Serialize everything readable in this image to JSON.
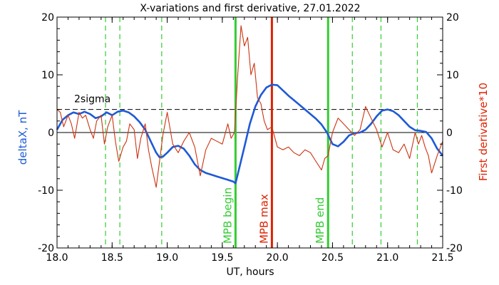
{
  "chart_data": {
    "type": "line",
    "title": "X-variations and first derivative, 27.01.2022",
    "xlabel": "UT, hours",
    "ylabel_left": "deltaX, nT",
    "ylabel_right": "First derivative*10",
    "xlim": [
      18.0,
      21.5
    ],
    "ylim": [
      -20,
      20
    ],
    "ylim_right": [
      -20,
      20
    ],
    "x_ticks": [
      18.0,
      18.5,
      19.0,
      19.5,
      20.0,
      20.5,
      21.0,
      21.5
    ],
    "x_tick_labels": [
      "18.0",
      "18.5",
      "19.0",
      "19.5",
      "20.0",
      "20.5",
      "21.0",
      "21.5"
    ],
    "y_ticks": [
      -20,
      -10,
      0,
      10,
      20
    ],
    "y_tick_labels": [
      "-20",
      "-10",
      "0",
      "10",
      "20"
    ],
    "y_ticks_right": [
      -20,
      -10,
      0,
      10,
      20
    ],
    "y_tick_labels_right": [
      "-20",
      "-10",
      "0",
      "10",
      "20"
    ],
    "colors": {
      "deltaX": "#1e5ad6",
      "derivative": "#cc3311",
      "green_lines": "#33cc33",
      "mpb_max": "#dd2200",
      "axes": "#000000"
    },
    "series": [
      {
        "name": "deltaX, nT",
        "axis": "left",
        "x": [
          18.0,
          18.05,
          18.1,
          18.15,
          18.2,
          18.25,
          18.3,
          18.35,
          18.4,
          18.45,
          18.5,
          18.55,
          18.6,
          18.65,
          18.7,
          18.75,
          18.8,
          18.85,
          18.9,
          18.93,
          18.96,
          19.0,
          19.05,
          19.1,
          19.15,
          19.2,
          19.25,
          19.3,
          19.35,
          19.4,
          19.45,
          19.5,
          19.55,
          19.6,
          19.62,
          19.65,
          19.7,
          19.75,
          19.8,
          19.85,
          19.9,
          19.95,
          20.0,
          20.05,
          20.1,
          20.15,
          20.2,
          20.25,
          20.3,
          20.35,
          20.4,
          20.45,
          20.5,
          20.55,
          20.6,
          20.65,
          20.7,
          20.75,
          20.8,
          20.85,
          20.9,
          20.95,
          21.0,
          21.05,
          21.1,
          21.15,
          21.2,
          21.25,
          21.3,
          21.35,
          21.4,
          21.45,
          21.5
        ],
        "y": [
          0.5,
          2.2,
          3.0,
          3.5,
          3.2,
          3.6,
          3.2,
          2.5,
          2.8,
          3.5,
          3.0,
          3.6,
          3.8,
          3.5,
          2.8,
          1.8,
          0.5,
          -1.5,
          -3.5,
          -4.3,
          -4.2,
          -3.5,
          -2.5,
          -2.3,
          -2.8,
          -4.0,
          -5.5,
          -6.5,
          -7.0,
          -7.3,
          -7.6,
          -7.9,
          -8.2,
          -8.5,
          -8.8,
          -6.5,
          -2.5,
          1.5,
          4.5,
          6.5,
          7.8,
          8.3,
          8.2,
          7.3,
          6.4,
          5.6,
          4.8,
          4.0,
          3.2,
          2.4,
          1.4,
          0.0,
          -2.0,
          -2.4,
          -1.6,
          -0.5,
          -0.1,
          0.0,
          0.5,
          1.5,
          2.8,
          3.8,
          4.0,
          3.7,
          3.0,
          2.0,
          1.0,
          0.4,
          0.3,
          0.1,
          -1.0,
          -2.8,
          -4.0
        ]
      },
      {
        "name": "First derivative*10",
        "axis": "right",
        "x": [
          18.0,
          18.03,
          18.06,
          18.1,
          18.13,
          18.16,
          18.2,
          18.23,
          18.26,
          18.3,
          18.33,
          18.36,
          18.4,
          18.43,
          18.46,
          18.5,
          18.53,
          18.56,
          18.6,
          18.63,
          18.66,
          18.7,
          18.73,
          18.76,
          18.8,
          18.83,
          18.86,
          18.9,
          18.93,
          18.96,
          19.0,
          19.05,
          19.1,
          19.15,
          19.2,
          19.25,
          19.3,
          19.35,
          19.4,
          19.45,
          19.5,
          19.55,
          19.58,
          19.61,
          19.64,
          19.67,
          19.7,
          19.73,
          19.76,
          19.79,
          19.82,
          19.85,
          19.88,
          19.91,
          19.95,
          20.0,
          20.05,
          20.1,
          20.15,
          20.2,
          20.25,
          20.3,
          20.35,
          20.4,
          20.43,
          20.46,
          20.5,
          20.55,
          20.6,
          20.65,
          20.7,
          20.75,
          20.8,
          20.85,
          20.9,
          20.95,
          21.0,
          21.05,
          21.1,
          21.15,
          21.2,
          21.25,
          21.28,
          21.31,
          21.34,
          21.37,
          21.4,
          21.45,
          21.5
        ],
        "y": [
          4.0,
          3.5,
          1.0,
          3.0,
          1.5,
          -1.0,
          3.5,
          2.5,
          3.0,
          0.5,
          -1.0,
          2.0,
          3.0,
          -2.0,
          1.0,
          3.0,
          -1.5,
          -5.0,
          -2.5,
          -1.5,
          1.5,
          0.5,
          -4.5,
          -1.0,
          1.5,
          -3.0,
          -6.0,
          -9.5,
          -5.0,
          -0.5,
          3.5,
          -2.0,
          -3.5,
          -1.5,
          0.0,
          -2.5,
          -7.5,
          -3.0,
          -1.0,
          -1.5,
          -2.0,
          1.5,
          -1.0,
          0.0,
          10.0,
          18.5,
          15.0,
          16.5,
          10.0,
          12.0,
          6.0,
          5.0,
          2.0,
          0.5,
          1.0,
          -2.5,
          -3.0,
          -2.5,
          -3.5,
          -4.0,
          -3.0,
          -3.5,
          -5.0,
          -6.5,
          -4.5,
          -4.0,
          0.0,
          2.5,
          1.5,
          0.5,
          -0.5,
          0.5,
          4.5,
          2.5,
          0.5,
          -2.5,
          0.0,
          -3.0,
          -3.5,
          -2.0,
          -4.5,
          0.0,
          -2.0,
          -0.5,
          -2.5,
          -4.0,
          -7.0,
          -4.0,
          -1.5
        ]
      }
    ],
    "green_dashed_lines_x": [
      18.44,
      18.57,
      18.95,
      20.68,
      20.94,
      21.27
    ],
    "sigma_line": {
      "y": 4.0,
      "label": "2sigma"
    },
    "markers": [
      {
        "x": 19.62,
        "label": "MPB begin",
        "color": "#33cc33"
      },
      {
        "x": 19.95,
        "label": "MPB max",
        "color": "#dd2200"
      },
      {
        "x": 20.46,
        "label": "MPB end",
        "color": "#33cc33"
      }
    ],
    "grid": false,
    "zero_line": true
  }
}
